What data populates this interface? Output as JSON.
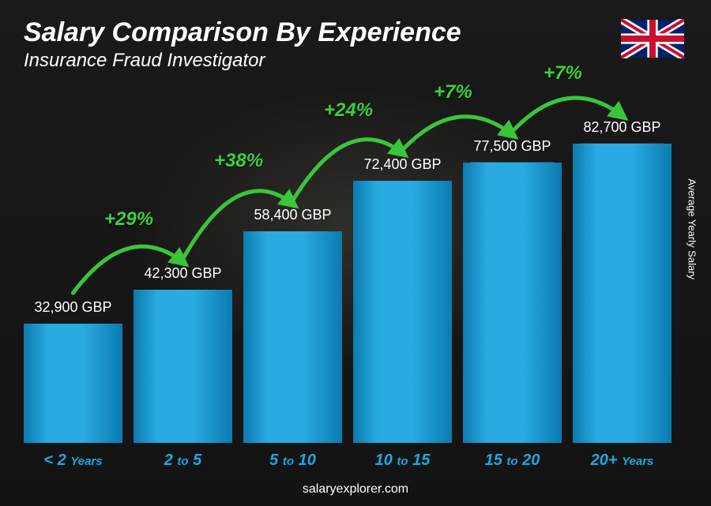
{
  "title": "Salary Comparison By Experience",
  "subtitle": "Insurance Fraud Investigator",
  "side_label": "Average Yearly Salary",
  "footer": "salaryexplorer.com",
  "currency": "GBP",
  "flag": "uk",
  "colors": {
    "title": "#ffffff",
    "subtitle": "#ffffff",
    "value_label": "#ffffff",
    "category": "#1da7e0",
    "bar_light": "#29abe2",
    "bar_dark": "#0b7baf",
    "bar_top1": "#6fcff3",
    "bar_top2": "#1a94cf",
    "arc_green": "#39c639",
    "arc_label": "#3bd13b",
    "background": "#1e1e1e"
  },
  "chart": {
    "type": "bar",
    "max_value": 82700,
    "bar_height_scale": 0.0048,
    "categories": [
      {
        "display_html": "< 2 <span class='small'>Years</span>",
        "plain": "< 2 Years"
      },
      {
        "display_html": "2 <span class='small'>to</span> 5",
        "plain": "2 to 5"
      },
      {
        "display_html": "5 <span class='small'>to</span> 10",
        "plain": "5 to 10"
      },
      {
        "display_html": "10 <span class='small'>to</span> 15",
        "plain": "10 to 15"
      },
      {
        "display_html": "15 <span class='small'>to</span> 20",
        "plain": "15 to 20"
      },
      {
        "display_html": "20+ <span class='small'>Years</span>",
        "plain": "20+ Years"
      }
    ],
    "values": [
      32900,
      42300,
      58400,
      72400,
      77500,
      82700
    ],
    "value_labels": [
      "32,900 GBP",
      "42,300 GBP",
      "58,400 GBP",
      "72,400 GBP",
      "77,500 GBP",
      "82,700 GBP"
    ],
    "increments": [
      "+29%",
      "+38%",
      "+24%",
      "+7%",
      "+7%"
    ]
  },
  "typography": {
    "title_fontsize": 34,
    "subtitle_fontsize": 24,
    "value_fontsize": 18,
    "category_fontsize": 20,
    "arc_fontsize": 24,
    "footer_fontsize": 16
  }
}
